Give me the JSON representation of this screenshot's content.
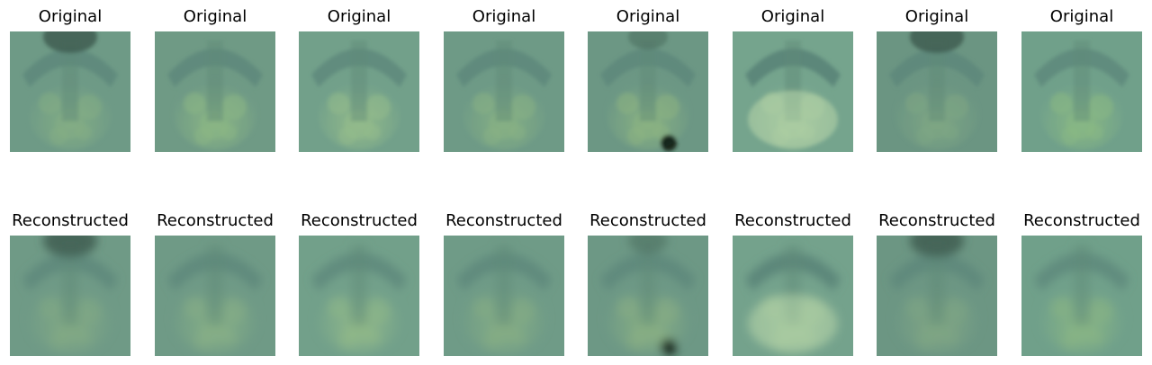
{
  "rows": [
    {
      "label": "Original",
      "images": [
        {
          "index": 1,
          "variant": "sharp",
          "tone": "dark-top",
          "base": "#6e9a86",
          "blob": "#83ad84"
        },
        {
          "index": 2,
          "variant": "sharp",
          "tone": "arc",
          "base": "#6f9a85",
          "blob": "#8bb684"
        },
        {
          "index": 3,
          "variant": "sharp",
          "tone": "arc",
          "base": "#72a08a",
          "blob": "#93bb8a"
        },
        {
          "index": 4,
          "variant": "sharp",
          "tone": "arc",
          "base": "#6e9a86",
          "blob": "#86b083"
        },
        {
          "index": 5,
          "variant": "sharp",
          "tone": "dark-spot",
          "base": "#6c9784",
          "blob": "#8ab282"
        },
        {
          "index": 6,
          "variant": "sharp",
          "tone": "bright-bowl",
          "base": "#75a48d",
          "blob": "#a2c69a"
        },
        {
          "index": 7,
          "variant": "sharp",
          "tone": "dark-top",
          "base": "#6b9582",
          "blob": "#7ea683"
        },
        {
          "index": 8,
          "variant": "sharp",
          "tone": "arc",
          "base": "#70a08a",
          "blob": "#89b884"
        }
      ]
    },
    {
      "label": "Reconstructed",
      "images": [
        {
          "index": 1,
          "variant": "blur",
          "tone": "dark-top",
          "base": "#6f9a86",
          "blob": "#82a984"
        },
        {
          "index": 2,
          "variant": "blur",
          "tone": "arc",
          "base": "#6f9a86",
          "blob": "#86af86"
        },
        {
          "index": 3,
          "variant": "blur",
          "tone": "arc",
          "base": "#72a08a",
          "blob": "#8fb889"
        },
        {
          "index": 4,
          "variant": "blur",
          "tone": "arc",
          "base": "#6f9b87",
          "blob": "#85ad84"
        },
        {
          "index": 5,
          "variant": "blur",
          "tone": "dark-spot",
          "base": "#6d9885",
          "blob": "#88af83"
        },
        {
          "index": 6,
          "variant": "blur",
          "tone": "bright-bowl",
          "base": "#74a28c",
          "blob": "#9ec398"
        },
        {
          "index": 7,
          "variant": "blur",
          "tone": "dark-top",
          "base": "#6c9683",
          "blob": "#80a684"
        },
        {
          "index": 8,
          "variant": "blur",
          "tone": "arc",
          "base": "#70a08a",
          "blob": "#88b585"
        }
      ]
    }
  ]
}
